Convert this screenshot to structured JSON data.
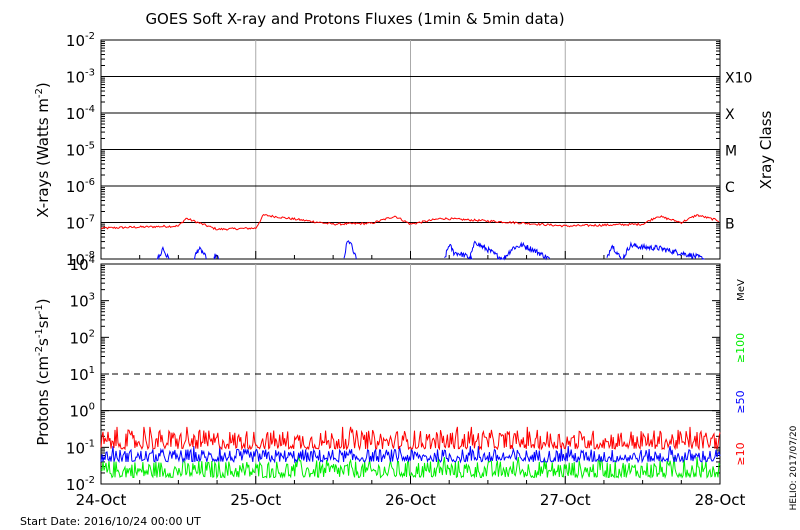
{
  "chart_data": [
    {
      "type": "line",
      "title": "GOES Soft X-ray and Protons Fluxes   (1min & 5min data)",
      "ylabel_parts": [
        "X-rays (Watts m",
        "-2",
        ")"
      ],
      "yscale": "log",
      "ylim": [
        1e-08,
        0.01
      ],
      "y_ticks": [
        {
          "base": "10",
          "exp": "-2"
        },
        {
          "base": "10",
          "exp": "-3"
        },
        {
          "base": "10",
          "exp": "-4"
        },
        {
          "base": "10",
          "exp": "-5"
        },
        {
          "base": "10",
          "exp": "-6"
        },
        {
          "base": "10",
          "exp": "-7"
        },
        {
          "base": "10",
          "exp": "-8"
        }
      ],
      "xray_class_axis": {
        "title": "Xray Class",
        "labels": [
          "X10",
          "X",
          "M",
          "C",
          "B"
        ]
      },
      "horizontal_lines_at": [
        0.001,
        0.0001,
        1e-05,
        1e-06,
        1e-07
      ],
      "x_range": [
        "2016-10-24T00:00",
        "2016-10-28T00:00"
      ],
      "series": [
        {
          "color": "#ff0000",
          "x_day": [
            0,
            0.25,
            0.5,
            0.55,
            0.75,
            1.0,
            1.05,
            1.5,
            1.75,
            1.9,
            2.0,
            2.2,
            2.5,
            2.75,
            3.0,
            3.25,
            3.5,
            3.6,
            3.75,
            3.85,
            4.0
          ],
          "y": [
            7e-08,
            7.5e-08,
            8e-08,
            1.3e-07,
            6.5e-08,
            7e-08,
            1.6e-07,
            9e-08,
            9.5e-08,
            1.5e-07,
            9e-08,
            1.3e-07,
            1.1e-07,
            9.5e-08,
            8e-08,
            8.5e-08,
            9e-08,
            1.5e-07,
            1e-07,
            1.6e-07,
            1.1e-07
          ]
        },
        {
          "color": "#0000ff",
          "segments": [
            {
              "x_day": [
                0.36,
                0.38,
                0.4,
                0.42,
                0.44
              ],
              "y": [
                1e-08,
                1.2e-08,
                2e-08,
                1.3e-08,
                1e-08
              ]
            },
            {
              "x_day": [
                0.6,
                0.63,
                0.66,
                0.68
              ],
              "y": [
                1e-08,
                1.9e-08,
                1.5e-08,
                1e-08
              ]
            },
            {
              "x_day": [
                0.73,
                0.74,
                0.76
              ],
              "y": [
                1e-08,
                1.3e-08,
                1e-08
              ]
            },
            {
              "x_day": [
                1.57,
                1.59,
                1.61,
                1.63,
                1.65
              ],
              "y": [
                1e-08,
                2.8e-08,
                3e-08,
                1.6e-08,
                1e-08
              ]
            },
            {
              "x_day": [
                2.22,
                2.25,
                2.28,
                2.32,
                2.36,
                2.4
              ],
              "y": [
                1e-08,
                2.5e-08,
                1.5e-08,
                1.4e-08,
                1.2e-08,
                1e-08
              ]
            },
            {
              "x_day": [
                2.38,
                2.42,
                2.46,
                2.5,
                2.55,
                2.6
              ],
              "y": [
                1e-08,
                3e-08,
                2.2e-08,
                1.8e-08,
                1.3e-08,
                1e-08
              ]
            },
            {
              "x_day": [
                2.6,
                2.66,
                2.72,
                2.78,
                2.84,
                2.9
              ],
              "y": [
                1e-08,
                2e-08,
                2.4e-08,
                1.9e-08,
                1.4e-08,
                1e-08
              ]
            },
            {
              "x_day": [
                3.27,
                3.3,
                3.33,
                3.36
              ],
              "y": [
                1e-08,
                2.5e-08,
                1.6e-08,
                1e-08
              ]
            },
            {
              "x_day": [
                3.37,
                3.42,
                3.5,
                3.6,
                3.7,
                3.8,
                3.9
              ],
              "y": [
                1e-08,
                2.4e-08,
                2.1e-08,
                2e-08,
                1.6e-08,
                1.3e-08,
                1e-08
              ]
            }
          ]
        }
      ]
    },
    {
      "type": "line",
      "ylabel_parts": [
        "Protons (cm",
        "-2",
        "s",
        "-1",
        "sr",
        "-1",
        ")"
      ],
      "yscale": "log",
      "ylim": [
        0.01,
        10000
      ],
      "y_ticks": [
        {
          "base": "10",
          "exp": "4"
        },
        {
          "base": "10",
          "exp": "3"
        },
        {
          "base": "10",
          "exp": "2"
        },
        {
          "base": "10",
          "exp": "1"
        },
        {
          "base": "10",
          "exp": "0"
        },
        {
          "base": "10",
          "exp": "-1"
        },
        {
          "base": "10",
          "exp": "-2"
        }
      ],
      "threshold_line": {
        "value": 10,
        "style": "dashed"
      },
      "energy_unit": "MeV",
      "series": [
        {
          "name": "≥100",
          "color": "#00ee00",
          "baseline": 0.025,
          "noise_range": [
            0.015,
            0.045
          ]
        },
        {
          "name": "≥50",
          "color": "#0000ff",
          "baseline": 0.055,
          "noise_range": [
            0.04,
            0.09
          ]
        },
        {
          "name": "≥10",
          "color": "#ff0000",
          "baseline": 0.14,
          "noise_range": [
            0.09,
            0.3
          ]
        }
      ]
    }
  ],
  "x_axis": {
    "tick_labels": [
      "24-Oct",
      "25-Oct",
      "26-Oct",
      "27-Oct",
      "28-Oct"
    ]
  },
  "footer": {
    "start_date": "Start Date: 2016/10/24 00:00 UT",
    "credit": "HELIO: 2017/07/20"
  }
}
